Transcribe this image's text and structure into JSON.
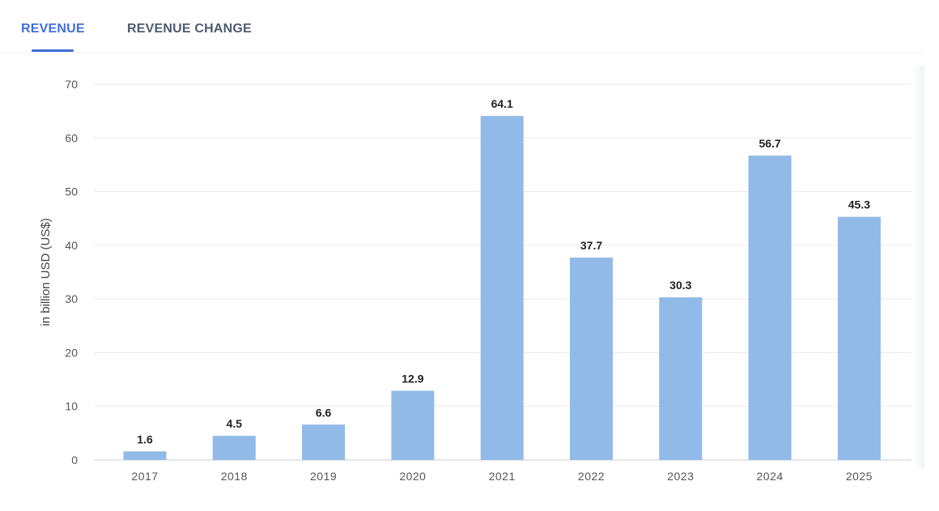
{
  "tabs": [
    {
      "label": "REVENUE",
      "active": true
    },
    {
      "label": "REVENUE CHANGE",
      "active": false
    }
  ],
  "colors": {
    "accent": "#3f6fd8",
    "bar": "#92bae8",
    "grid": "#e6e9ee",
    "axis_text": "#555555",
    "label_text": "#222222"
  },
  "chart_data": {
    "type": "bar",
    "categories": [
      "2017",
      "2018",
      "2019",
      "2020",
      "2021",
      "2022",
      "2023",
      "2024",
      "2025"
    ],
    "values": [
      1.6,
      4.5,
      6.6,
      12.9,
      64.1,
      37.7,
      30.3,
      56.7,
      45.3
    ],
    "data_labels": [
      "1.6",
      "4.5",
      "6.6",
      "12.9",
      "64.1",
      "37.7",
      "30.3",
      "56.7",
      "45.3"
    ],
    "title": "",
    "xlabel": "",
    "ylabel": "in billion USD (US$)",
    "ylim": [
      0,
      70
    ],
    "yticks": [
      0,
      10,
      20,
      30,
      40,
      50,
      60,
      70
    ],
    "grid": true,
    "legend": "none"
  }
}
